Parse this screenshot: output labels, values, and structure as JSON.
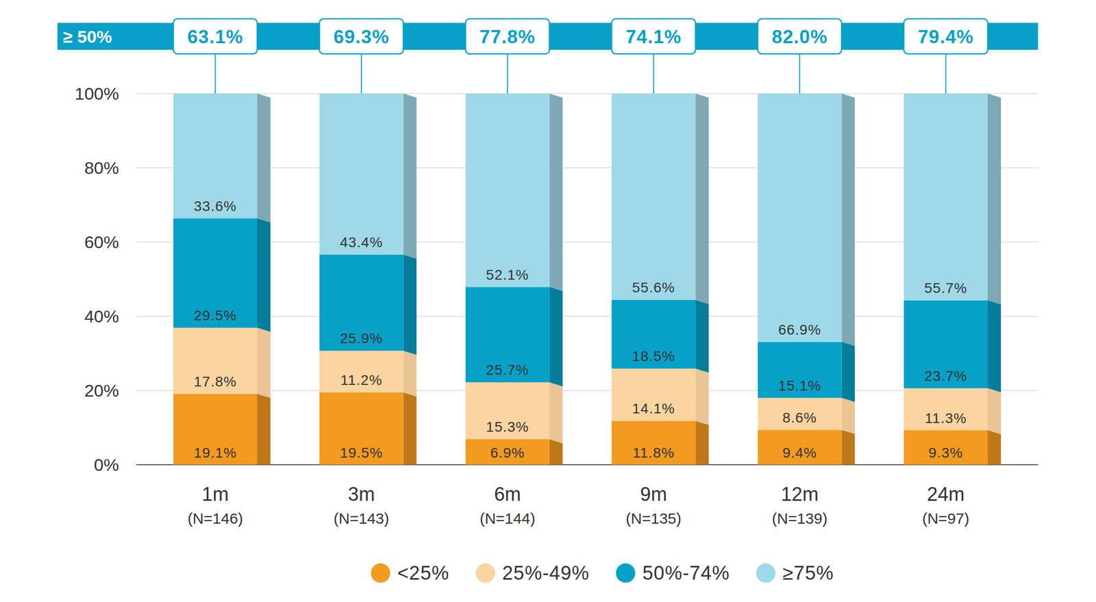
{
  "chart_data": {
    "type": "bar",
    "stacked": true,
    "data_labels": true,
    "grid": true,
    "legend": "bottom",
    "categories": [
      "1m",
      "3m",
      "6m",
      "9m",
      "12m",
      "24m"
    ],
    "category_sublabels": [
      "(N=146)",
      "(N=143)",
      "(N=144)",
      "(N=135)",
      "(N=139)",
      "(N=97)"
    ],
    "ylim": [
      0,
      100
    ],
    "yticks": [
      {
        "value": 0,
        "label": "0%"
      },
      {
        "value": 20,
        "label": "20%"
      },
      {
        "value": 40,
        "label": "40%"
      },
      {
        "value": 60,
        "label": "60%"
      },
      {
        "value": 80,
        "label": "80%"
      },
      {
        "value": 100,
        "label": "100%"
      }
    ],
    "series": [
      {
        "name": "<25%",
        "color": "#f39a21",
        "values": [
          19.1,
          19.5,
          6.9,
          11.8,
          9.4,
          9.3
        ],
        "value_labels": [
          "19.1%",
          "19.5%",
          "6.9%",
          "11.8%",
          "9.4%",
          "9.3%"
        ]
      },
      {
        "name": "25%-49%",
        "color": "#fbd4a0",
        "values": [
          17.8,
          11.2,
          15.3,
          14.1,
          8.6,
          11.3
        ],
        "value_labels": [
          "17.8%",
          "11.2%",
          "15.3%",
          "14.1%",
          "8.6%",
          "11.3%"
        ]
      },
      {
        "name": "50%-74%",
        "color": "#07a0c7",
        "values": [
          29.5,
          25.9,
          25.7,
          18.5,
          15.1,
          23.7
        ],
        "value_labels": [
          "29.5%",
          "25.9%",
          "25.7%",
          "18.5%",
          "15.1%",
          "23.7%"
        ]
      },
      {
        "name": "≥75%",
        "color": "#9fd9e8",
        "values": [
          33.6,
          43.4,
          52.1,
          55.6,
          66.9,
          55.7
        ],
        "value_labels": [
          "33.6%",
          "43.4%",
          "52.1%",
          "55.6%",
          "66.9%",
          "55.7%"
        ]
      }
    ],
    "annotations": {
      "label": "≥ 50%",
      "texts": [
        "63.1%",
        "69.3%",
        "77.8%",
        "74.1%",
        "82.0%",
        "79.4%"
      ]
    }
  }
}
